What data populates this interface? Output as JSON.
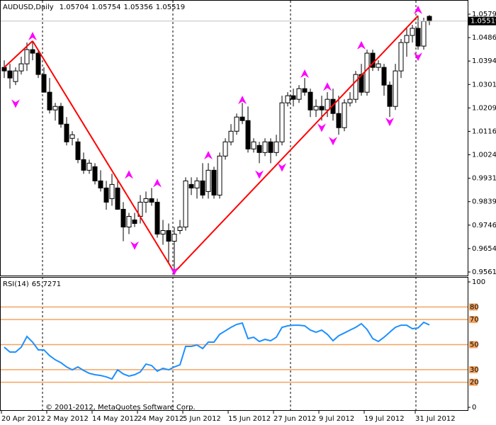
{
  "chart_data": {
    "type": "candlestick",
    "symbol_label": "AUDUSD,Daily",
    "copyright": "© 2001-2012, MetaQuotes Software Corp.",
    "categories": [
      "20 Apr 2012",
      null,
      null,
      null,
      null,
      null,
      null,
      null,
      "2 May 2012",
      null,
      null,
      null,
      null,
      null,
      null,
      null,
      "14 May 2012",
      null,
      null,
      null,
      null,
      null,
      null,
      null,
      "24 May 2012",
      null,
      null,
      null,
      null,
      null,
      null,
      null,
      "5 Jun 2012",
      null,
      null,
      null,
      null,
      null,
      null,
      null,
      "15 Jun 2012",
      null,
      null,
      null,
      null,
      null,
      null,
      null,
      "27 Jun 2012",
      null,
      null,
      null,
      null,
      null,
      null,
      null,
      "9 Jul 2012",
      null,
      null,
      null,
      null,
      null,
      null,
      null,
      "19 Jul 2012",
      null,
      null,
      null,
      null,
      null,
      null,
      null,
      null,
      "31 Jul 2012",
      null,
      null
    ],
    "open": [
      1.0369,
      1.0355,
      1.0313,
      1.0355,
      1.0383,
      1.0439,
      1.0425,
      1.0341,
      1.0271,
      1.0201,
      1.0215,
      1.0145,
      1.0089,
      1.0075,
      1.0005,
      0.9963,
      0.9977,
      0.9921,
      0.9893,
      0.9851,
      0.9893,
      0.9809,
      0.9739,
      0.9767,
      0.9781,
      0.9837,
      0.9851,
      0.9837,
      0.9711,
      0.9725,
      0.9683,
      0.9725,
      0.9739,
      0.9907,
      0.9893,
      0.9921,
      0.9879,
      0.9963,
      0.9865,
      1.0019,
      1.0075,
      1.0117,
      1.0173,
      1.0159,
      1.0047,
      1.0061,
      1.0033,
      1.0075,
      1.0033,
      1.0075,
      1.0229,
      1.0257,
      1.0243,
      1.0285,
      1.0271,
      1.0201,
      1.0215,
      1.0201,
      1.0243,
      1.0187,
      1.0131,
      1.0229,
      1.0243,
      1.0341,
      1.0271,
      1.0425,
      1.0369,
      1.0369,
      1.0299,
      1.0215,
      1.0355,
      1.0467,
      1.0495,
      1.0523,
      1.0453,
      1.05704
    ],
    "high": [
      1.0397,
      1.0383,
      1.0369,
      1.0411,
      1.0467,
      1.0473,
      1.0439,
      1.0369,
      1.0327,
      1.0229,
      1.0229,
      1.0173,
      1.0117,
      1.0089,
      1.0033,
      1.0005,
      0.9991,
      0.9963,
      0.9921,
      0.9949,
      0.9921,
      0.9837,
      0.9795,
      0.9795,
      0.9865,
      0.9879,
      0.9893,
      0.9851,
      0.9767,
      0.9753,
      0.9739,
      0.9767,
      0.9935,
      0.9935,
      0.9935,
      0.9991,
      0.9991,
      0.9977,
      1.0033,
      1.0089,
      1.0145,
      1.0187,
      1.0229,
      1.0215,
      1.0089,
      1.0075,
      1.0089,
      1.0089,
      1.0103,
      1.0257,
      1.0271,
      1.0285,
      1.0299,
      1.0327,
      1.0285,
      1.0243,
      1.0257,
      1.0271,
      1.0285,
      1.0257,
      1.0243,
      1.0271,
      1.0355,
      1.0383,
      1.0439,
      1.0439,
      1.0397,
      1.0383,
      1.0313,
      1.0383,
      1.0481,
      1.0523,
      1.0537,
      1.0573,
      1.0565,
      1.05754
    ],
    "low": [
      1.0327,
      1.0285,
      1.0299,
      1.0341,
      1.0355,
      1.0397,
      1.0327,
      1.0271,
      1.0187,
      1.0159,
      1.0131,
      1.0061,
      1.0061,
      0.9991,
      0.9949,
      0.9949,
      0.9907,
      0.9879,
      0.9807,
      0.9823,
      0.9807,
      0.9683,
      0.9711,
      0.9739,
      0.9753,
      0.9795,
      0.9823,
      0.9697,
      0.9669,
      0.9599,
      0.956,
      0.9711,
      0.9725,
      0.9865,
      0.9851,
      0.9851,
      0.9851,
      0.9851,
      0.9851,
      1.0005,
      1.0061,
      1.0103,
      1.0145,
      1.0033,
      1.0033,
      0.9991,
      1.0019,
      0.9991,
      1.0019,
      1.0061,
      1.0215,
      1.0215,
      1.0229,
      1.0257,
      1.0173,
      1.0173,
      1.0159,
      1.0173,
      1.0159,
      1.0103,
      1.0117,
      1.0215,
      1.0229,
      1.0257,
      1.0257,
      1.0355,
      1.0355,
      1.0257,
      1.0173,
      1.0201,
      1.0327,
      1.0411,
      1.0467,
      1.0439,
      1.0439,
      1.05356
    ],
    "close": [
      1.0355,
      1.0327,
      1.0355,
      1.0383,
      1.0439,
      1.0425,
      1.0341,
      1.0271,
      1.0201,
      1.0215,
      1.0145,
      1.0075,
      1.0103,
      1.0005,
      0.9963,
      0.9991,
      0.9921,
      0.9893,
      0.9837,
      0.9907,
      0.9809,
      0.9739,
      0.9781,
      0.9753,
      0.9837,
      0.9851,
      0.9837,
      0.9711,
      0.9725,
      0.9683,
      0.9711,
      0.9739,
      0.9921,
      0.9893,
      0.9921,
      0.9865,
      0.9963,
      0.9865,
      1.0019,
      1.0075,
      1.0117,
      1.0173,
      1.0159,
      1.0047,
      1.0075,
      1.0033,
      1.0075,
      1.0033,
      1.0075,
      1.0229,
      1.0257,
      1.0243,
      1.0285,
      1.0271,
      1.0201,
      1.0215,
      1.0201,
      1.0243,
      1.0187,
      1.0131,
      1.0229,
      1.0243,
      1.0341,
      1.0271,
      1.0425,
      1.0369,
      1.0383,
      1.0299,
      1.0215,
      1.0355,
      1.0467,
      1.0495,
      1.0523,
      1.0453,
      1.0551,
      1.05519
    ],
    "bull_color": "#ffffff",
    "bear_color": "#000000",
    "wick_color": "#000000",
    "ylim": [
      0.95447,
      1.06293
    ],
    "yticks": [
      {
        "value": 1.0579,
        "label": "1.05790"
      },
      1.04865,
      {
        "value": 1.0394,
        "label": "1.03940"
      },
      1.03015,
      {
        "value": 1.0209,
        "label": "1.02090"
      },
      1.01165,
      {
        "value": 1.0024,
        "label": "1.00240"
      },
      0.99315,
      {
        "value": 0.9839,
        "label": "0.98390"
      },
      0.97465,
      {
        "value": 0.9654,
        "label": "0.96540"
      },
      0.95615
    ],
    "zigzag": {
      "color": "#ff0000",
      "values": [
        1.0369,
        null,
        null,
        null,
        null,
        1.0473,
        null,
        null,
        null,
        null,
        null,
        null,
        null,
        null,
        null,
        null,
        null,
        null,
        null,
        null,
        null,
        null,
        null,
        null,
        null,
        null,
        null,
        null,
        null,
        null,
        0.956,
        null,
        null,
        null,
        null,
        null,
        null,
        null,
        null,
        null,
        null,
        null,
        null,
        null,
        null,
        null,
        null,
        null,
        null,
        null,
        null,
        null,
        null,
        null,
        null,
        null,
        null,
        null,
        null,
        null,
        null,
        null,
        null,
        null,
        null,
        null,
        null,
        null,
        null,
        null,
        null,
        null,
        null,
        1.0573,
        null,
        null
      ]
    },
    "fractals_up": {
      "color": "#ff00ff",
      "values": [
        null,
        null,
        null,
        null,
        null,
        1.0509,
        null,
        null,
        null,
        null,
        null,
        null,
        null,
        null,
        null,
        null,
        null,
        null,
        null,
        null,
        null,
        null,
        0.9963,
        null,
        null,
        null,
        null,
        0.9929,
        null,
        null,
        null,
        null,
        null,
        null,
        null,
        null,
        1.0039,
        null,
        null,
        null,
        null,
        null,
        1.0257,
        null,
        null,
        null,
        null,
        null,
        null,
        null,
        null,
        null,
        null,
        1.0361,
        null,
        null,
        null,
        1.031,
        null,
        null,
        null,
        null,
        null,
        1.0473,
        null,
        null,
        null,
        null,
        null,
        null,
        null,
        null,
        null,
        1.0613,
        null,
        null
      ]
    },
    "fractals_down": {
      "color": "#ff00ff",
      "values": [
        null,
        null,
        1.0209,
        null,
        null,
        null,
        null,
        null,
        null,
        null,
        null,
        null,
        null,
        null,
        null,
        null,
        null,
        null,
        null,
        null,
        null,
        null,
        null,
        0.9649,
        null,
        null,
        null,
        null,
        null,
        null,
        0.9548,
        null,
        null,
        null,
        null,
        null,
        null,
        null,
        null,
        null,
        null,
        null,
        null,
        null,
        null,
        0.9929,
        null,
        null,
        null,
        0.9957,
        null,
        null,
        null,
        null,
        null,
        null,
        1.0114,
        null,
        1.0061,
        null,
        null,
        null,
        null,
        null,
        null,
        null,
        null,
        null,
        1.0137,
        null,
        null,
        null,
        null,
        1.0394,
        null,
        null
      ]
    },
    "rsi": {
      "name": "RSI(14)",
      "color": "#1e90ff",
      "values": [
        48.0,
        44.1,
        44.1,
        48.0,
        56.5,
        52.0,
        45.8,
        45.8,
        41.2,
        37.9,
        35.6,
        32.2,
        29.9,
        32.2,
        29.4,
        27.1,
        26.0,
        25.4,
        24.3,
        22.6,
        29.9,
        26.6,
        24.9,
        26.0,
        28.2,
        34.5,
        33.3,
        28.8,
        31.1,
        29.9,
        32.2,
        33.9,
        48.6,
        48.6,
        49.7,
        46.9,
        52.0,
        52.0,
        58.2,
        61.0,
        63.8,
        66.1,
        67.2,
        54.8,
        55.9,
        52.5,
        54.2,
        53.1,
        55.9,
        63.8,
        65.0,
        65.5,
        65.5,
        65.0,
        61.6,
        59.9,
        61.6,
        58.2,
        53.1,
        57.1,
        59.3,
        61.6,
        63.8,
        66.7,
        62.1,
        54.8,
        52.5,
        55.9,
        59.9,
        63.8,
        65.5,
        65.5,
        62.7,
        63.3,
        67.8,
        65.7271
      ],
      "ylim": [
        -2.8,
        103.4
      ],
      "yticks": [
        100,
        0
      ],
      "levels": [
        80,
        70,
        50,
        30,
        20
      ],
      "level_color": "#f4a460"
    }
  }
}
